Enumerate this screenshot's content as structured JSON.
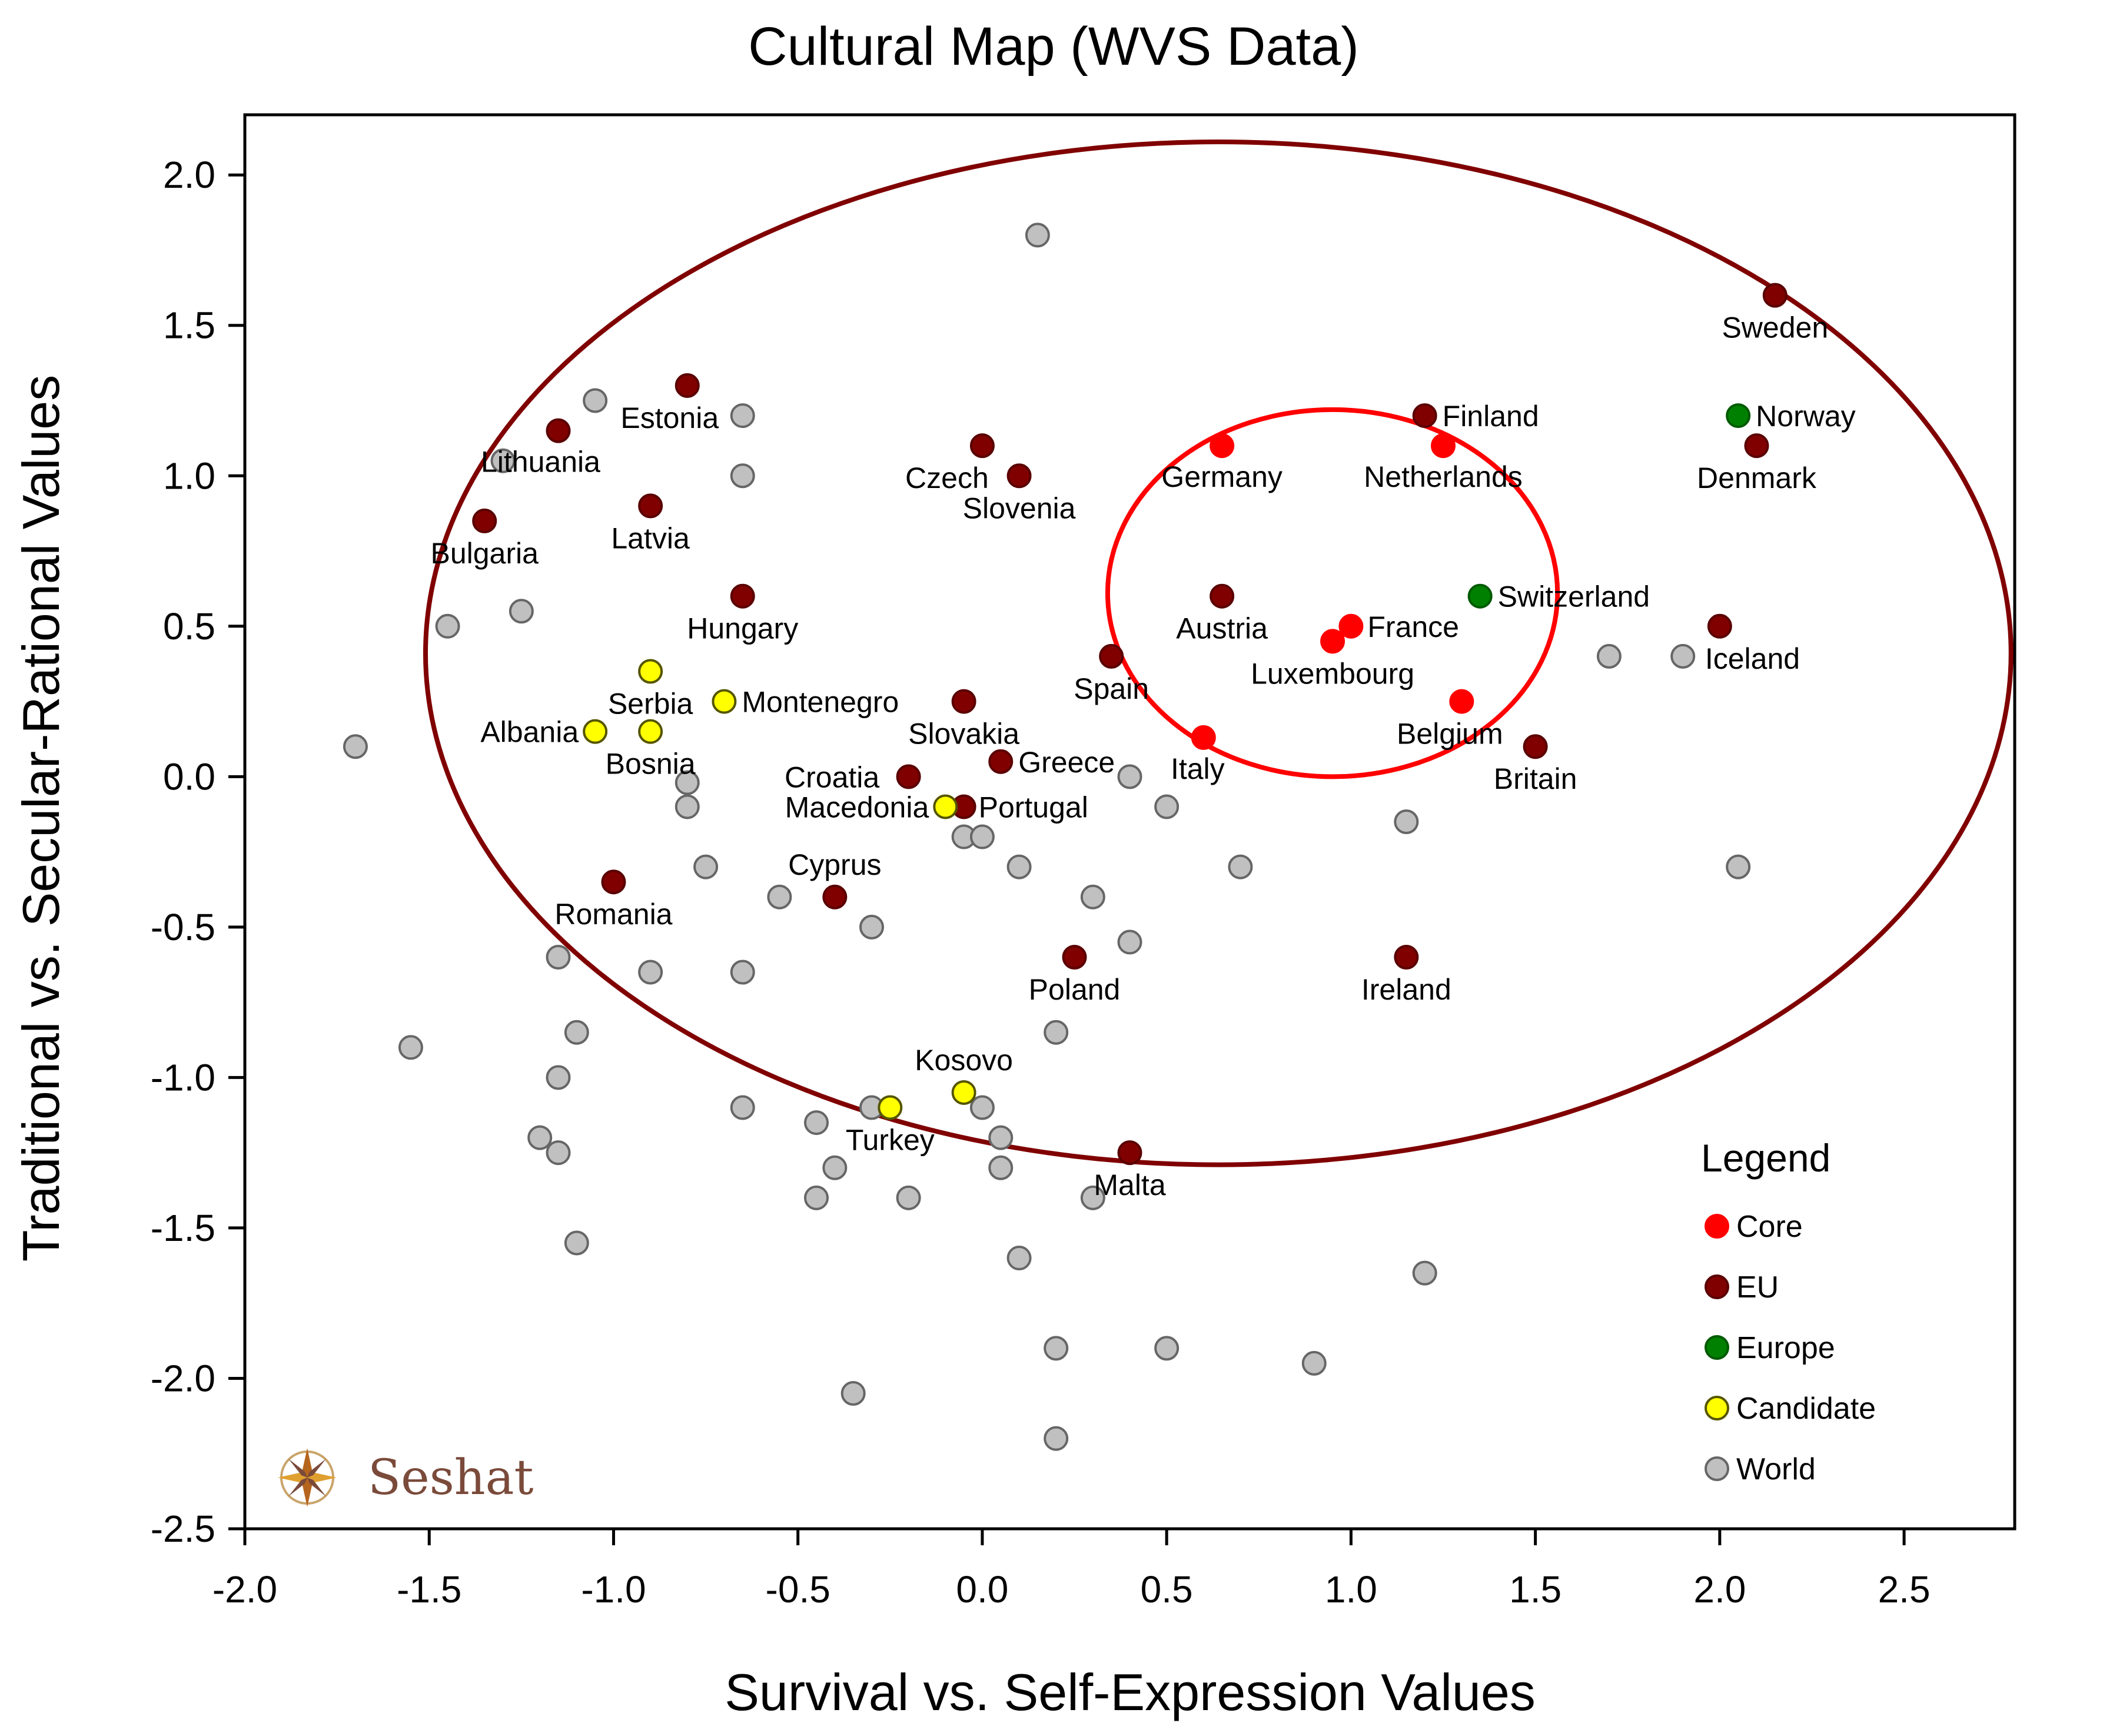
{
  "chart_data": {
    "type": "scatter",
    "title": "Cultural Map (WVS Data)",
    "xlabel": "Survival vs. Self-Expression Values",
    "ylabel": "Traditional vs. Secular-Rational Values",
    "xlim": [
      -2.0,
      2.8
    ],
    "ylim": [
      -2.5,
      2.2
    ],
    "xticks": [
      "-2.0",
      "-1.5",
      "-1.0",
      "-0.5",
      "0.0",
      "0.5",
      "1.0",
      "1.5",
      "2.0",
      "2.5"
    ],
    "xtick_values": [
      -2.0,
      -1.5,
      -1.0,
      -0.5,
      0.0,
      0.5,
      1.0,
      1.5,
      2.0,
      2.5
    ],
    "yticks": [
      "2.0",
      "1.5",
      "1.0",
      "0.5",
      "0.0",
      "-0.5",
      "-1.0",
      "-1.5",
      "-2.0",
      "-2.5"
    ],
    "ytick_values": [
      2.0,
      1.5,
      1.0,
      0.5,
      0.0,
      -0.5,
      -1.0,
      -1.5,
      -2.0,
      -2.5
    ],
    "grid": false,
    "legend_placement": "bottom-right",
    "legend": {
      "title": "Legend",
      "entries": [
        {
          "group": "Core",
          "label": "Core",
          "color": "#ff0000"
        },
        {
          "group": "EU",
          "label": "EU",
          "color": "#800000"
        },
        {
          "group": "Europe",
          "label": "Europe",
          "color": "#008000"
        },
        {
          "group": "Candidate",
          "label": "Candidate",
          "color": "#ffff00"
        },
        {
          "group": "World",
          "label": "World",
          "color": "#c0c0c0"
        }
      ]
    },
    "ellipses": [
      {
        "name": "eu-ellipse",
        "cx": 0.64,
        "cy": 0.41,
        "rx": 2.15,
        "ry": 1.7,
        "color": "#800000"
      },
      {
        "name": "core-ellipse",
        "cx": 0.95,
        "cy": 0.61,
        "rx": 0.61,
        "ry": 0.61,
        "color": "#ff0000"
      }
    ],
    "points": [
      {
        "group": "Core",
        "label": "Germany",
        "x": 0.65,
        "y": 1.1
      },
      {
        "group": "Core",
        "label": "Netherlands",
        "x": 1.25,
        "y": 1.1
      },
      {
        "group": "Core",
        "label": "France",
        "x": 1.0,
        "y": 0.5
      },
      {
        "group": "Core",
        "label": "Luxembourg",
        "x": 0.95,
        "y": 0.45
      },
      {
        "group": "Core",
        "label": "Belgium",
        "x": 1.3,
        "y": 0.25
      },
      {
        "group": "Core",
        "label": "Italy",
        "x": 0.6,
        "y": 0.13
      },
      {
        "group": "EU",
        "label": "Sweden",
        "x": 2.15,
        "y": 1.6
      },
      {
        "group": "EU",
        "label": "Finland",
        "x": 1.2,
        "y": 1.2
      },
      {
        "group": "EU",
        "label": "Denmark",
        "x": 2.1,
        "y": 1.1
      },
      {
        "group": "EU",
        "label": "Estonia",
        "x": -0.8,
        "y": 1.3
      },
      {
        "group": "EU",
        "label": "Lithuania",
        "x": -1.15,
        "y": 1.15
      },
      {
        "group": "EU",
        "label": "Czech",
        "x": 0.0,
        "y": 1.1
      },
      {
        "group": "EU",
        "label": "Slovenia",
        "x": 0.1,
        "y": 1.0
      },
      {
        "group": "EU",
        "label": "Latvia",
        "x": -0.9,
        "y": 0.9
      },
      {
        "group": "EU",
        "label": "Bulgaria",
        "x": -1.35,
        "y": 0.85
      },
      {
        "group": "EU",
        "label": "Hungary",
        "x": -0.65,
        "y": 0.6
      },
      {
        "group": "EU",
        "label": "Austria",
        "x": 0.65,
        "y": 0.6
      },
      {
        "group": "EU",
        "label": "Iceland",
        "x": 2.0,
        "y": 0.5
      },
      {
        "group": "EU",
        "label": "Spain",
        "x": 0.35,
        "y": 0.4
      },
      {
        "group": "EU",
        "label": "Slovakia",
        "x": -0.05,
        "y": 0.25
      },
      {
        "group": "EU",
        "label": "Britain",
        "x": 1.5,
        "y": 0.1
      },
      {
        "group": "EU",
        "label": "Greece",
        "x": 0.05,
        "y": 0.05
      },
      {
        "group": "EU",
        "label": "Croatia",
        "x": -0.2,
        "y": 0.0
      },
      {
        "group": "EU",
        "label": "Portugal",
        "x": -0.05,
        "y": -0.1
      },
      {
        "group": "EU",
        "label": "Romania",
        "x": -1.0,
        "y": -0.35
      },
      {
        "group": "EU",
        "label": "Cyprus",
        "x": -0.4,
        "y": -0.4
      },
      {
        "group": "EU",
        "label": "Poland",
        "x": 0.25,
        "y": -0.6
      },
      {
        "group": "EU",
        "label": "Ireland",
        "x": 1.15,
        "y": -0.6
      },
      {
        "group": "EU",
        "label": "Malta",
        "x": 0.4,
        "y": -1.25
      },
      {
        "group": "Europe",
        "label": "Norway",
        "x": 2.05,
        "y": 1.2
      },
      {
        "group": "Europe",
        "label": "Switzerland",
        "x": 1.35,
        "y": 0.6
      },
      {
        "group": "Candidate",
        "label": "Serbia",
        "x": -0.9,
        "y": 0.35
      },
      {
        "group": "Candidate",
        "label": "Montenegro",
        "x": -0.7,
        "y": 0.25
      },
      {
        "group": "Candidate",
        "label": "Albania",
        "x": -1.05,
        "y": 0.15
      },
      {
        "group": "Candidate",
        "label": "Bosnia",
        "x": -0.9,
        "y": 0.15
      },
      {
        "group": "Candidate",
        "label": "Macedonia",
        "x": -0.1,
        "y": -0.1
      },
      {
        "group": "Candidate",
        "label": "Kosovo",
        "x": -0.05,
        "y": -1.05
      },
      {
        "group": "Candidate",
        "label": "Turkey",
        "x": -0.25,
        "y": -1.1
      },
      {
        "group": "World",
        "label": "",
        "x": 0.15,
        "y": 1.8
      },
      {
        "group": "World",
        "label": "",
        "x": -1.05,
        "y": 1.25
      },
      {
        "group": "World",
        "label": "",
        "x": -0.65,
        "y": 1.2
      },
      {
        "group": "World",
        "label": "",
        "x": -1.3,
        "y": 1.05
      },
      {
        "group": "World",
        "label": "",
        "x": -0.65,
        "y": 1.0
      },
      {
        "group": "World",
        "label": "",
        "x": -1.25,
        "y": 0.55
      },
      {
        "group": "World",
        "label": "",
        "x": -1.45,
        "y": 0.5
      },
      {
        "group": "World",
        "label": "",
        "x": 1.7,
        "y": 0.4
      },
      {
        "group": "World",
        "label": "",
        "x": 1.9,
        "y": 0.4
      },
      {
        "group": "World",
        "label": "",
        "x": -1.7,
        "y": 0.1
      },
      {
        "group": "World",
        "label": "",
        "x": -0.8,
        "y": -0.02
      },
      {
        "group": "World",
        "label": "",
        "x": 0.4,
        "y": 0.0
      },
      {
        "group": "World",
        "label": "",
        "x": -0.8,
        "y": -0.1
      },
      {
        "group": "World",
        "label": "",
        "x": 0.5,
        "y": -0.1
      },
      {
        "group": "World",
        "label": "",
        "x": 1.15,
        "y": -0.15
      },
      {
        "group": "World",
        "label": "",
        "x": -0.05,
        "y": -0.2
      },
      {
        "group": "World",
        "label": "",
        "x": 0.0,
        "y": -0.2
      },
      {
        "group": "World",
        "label": "",
        "x": -0.75,
        "y": -0.3
      },
      {
        "group": "World",
        "label": "",
        "x": 0.1,
        "y": -0.3
      },
      {
        "group": "World",
        "label": "",
        "x": 0.7,
        "y": -0.3
      },
      {
        "group": "World",
        "label": "",
        "x": 2.05,
        "y": -0.3
      },
      {
        "group": "World",
        "label": "",
        "x": -0.55,
        "y": -0.4
      },
      {
        "group": "World",
        "label": "",
        "x": 0.3,
        "y": -0.4
      },
      {
        "group": "World",
        "label": "",
        "x": -0.3,
        "y": -0.5
      },
      {
        "group": "World",
        "label": "",
        "x": 0.4,
        "y": -0.55
      },
      {
        "group": "World",
        "label": "",
        "x": -1.15,
        "y": -0.6
      },
      {
        "group": "World",
        "label": "",
        "x": -0.9,
        "y": -0.65
      },
      {
        "group": "World",
        "label": "",
        "x": -0.65,
        "y": -0.65
      },
      {
        "group": "World",
        "label": "",
        "x": -1.1,
        "y": -0.85
      },
      {
        "group": "World",
        "label": "",
        "x": 0.2,
        "y": -0.85
      },
      {
        "group": "World",
        "label": "",
        "x": -1.55,
        "y": -0.9
      },
      {
        "group": "World",
        "label": "",
        "x": -1.15,
        "y": -1.0
      },
      {
        "group": "World",
        "label": "",
        "x": -0.65,
        "y": -1.1
      },
      {
        "group": "World",
        "label": "",
        "x": -0.3,
        "y": -1.1
      },
      {
        "group": "World",
        "label": "",
        "x": 0.0,
        "y": -1.1
      },
      {
        "group": "World",
        "label": "",
        "x": -0.45,
        "y": -1.15
      },
      {
        "group": "World",
        "label": "",
        "x": -1.2,
        "y": -1.2
      },
      {
        "group": "World",
        "label": "",
        "x": 0.05,
        "y": -1.2
      },
      {
        "group": "World",
        "label": "",
        "x": -1.15,
        "y": -1.25
      },
      {
        "group": "World",
        "label": "",
        "x": -0.4,
        "y": -1.3
      },
      {
        "group": "World",
        "label": "",
        "x": 0.05,
        "y": -1.3
      },
      {
        "group": "World",
        "label": "",
        "x": -0.45,
        "y": -1.4
      },
      {
        "group": "World",
        "label": "",
        "x": -0.2,
        "y": -1.4
      },
      {
        "group": "World",
        "label": "",
        "x": 0.3,
        "y": -1.4
      },
      {
        "group": "World",
        "label": "",
        "x": -1.1,
        "y": -1.55
      },
      {
        "group": "World",
        "label": "",
        "x": 0.1,
        "y": -1.6
      },
      {
        "group": "World",
        "label": "",
        "x": 1.2,
        "y": -1.65
      },
      {
        "group": "World",
        "label": "",
        "x": 0.2,
        "y": -1.9
      },
      {
        "group": "World",
        "label": "",
        "x": 0.5,
        "y": -1.9
      },
      {
        "group": "World",
        "label": "",
        "x": 0.9,
        "y": -1.95
      },
      {
        "group": "World",
        "label": "",
        "x": -0.35,
        "y": -2.05
      },
      {
        "group": "World",
        "label": "",
        "x": 0.2,
        "y": -2.2
      }
    ]
  },
  "logo": {
    "text": "Seshat",
    "icon": "compass-rose-icon"
  }
}
